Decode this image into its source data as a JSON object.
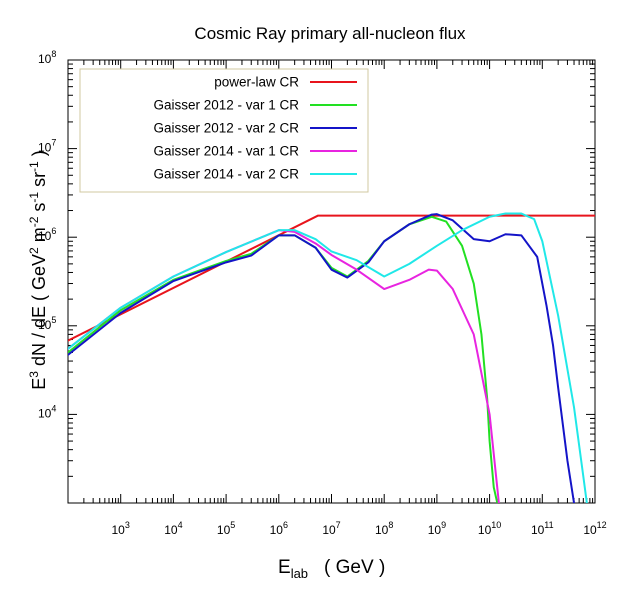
{
  "chart_data": {
    "type": "line",
    "title": "Cosmic Ray primary all-nucleon flux",
    "xlabel": {
      "main": "E",
      "sub": "lab",
      "unit": "( GeV )"
    },
    "ylabel": {
      "text1": "E",
      "sup1": "3",
      "text2": " dN / dE   ( GeV",
      "sup2": "2",
      "text3": " m",
      "sup3": "-2",
      "text4": " s",
      "sup4": "-1",
      "text5": " sr",
      "sup5": "-1",
      "text6": " )"
    },
    "x_scale": "log",
    "y_scale": "log",
    "xlim": [
      100,
      1000000000000
    ],
    "ylim": [
      1000,
      100000000
    ],
    "grid": false,
    "legend_position": "top-left",
    "x_ticks": [
      {
        "base": "10",
        "exp": "3",
        "value": 1000
      },
      {
        "base": "10",
        "exp": "4",
        "value": 10000
      },
      {
        "base": "10",
        "exp": "5",
        "value": 100000
      },
      {
        "base": "10",
        "exp": "6",
        "value": 1000000
      },
      {
        "base": "10",
        "exp": "7",
        "value": 10000000
      },
      {
        "base": "10",
        "exp": "8",
        "value": 100000000
      },
      {
        "base": "10",
        "exp": "9",
        "value": 1000000000
      },
      {
        "base": "10",
        "exp": "10",
        "value": 10000000000
      },
      {
        "base": "10",
        "exp": "11",
        "value": 100000000000
      },
      {
        "base": "10",
        "exp": "12",
        "value": 1000000000000
      }
    ],
    "y_ticks": [
      {
        "base": "10",
        "exp": "4",
        "value": 10000
      },
      {
        "base": "10",
        "exp": "5",
        "value": 100000
      },
      {
        "base": "10",
        "exp": "6",
        "value": 1000000
      },
      {
        "base": "10",
        "exp": "7",
        "value": 10000000
      },
      {
        "base": "10",
        "exp": "8",
        "value": 100000000
      }
    ],
    "series": [
      {
        "name": "power-law CR",
        "color": "#e8141c",
        "x": [
          100,
          5500000,
          1000000000000
        ],
        "y": [
          68000,
          1750000,
          1750000
        ]
      },
      {
        "name": "Gaisser 2012 - var 1 CR",
        "color": "#22e022",
        "x": [
          100,
          1000,
          10000,
          100000,
          300000,
          1000000,
          2000000,
          5000000,
          10000000,
          20000000,
          50000000,
          100000000,
          300000000,
          800000000,
          1500000000,
          3000000000,
          5000000000,
          7000000000,
          9000000000,
          10000000000,
          12000000000,
          14000000000
        ],
        "y": [
          50000,
          150000,
          330000,
          540000,
          650000,
          1050000,
          1050000,
          760000,
          450000,
          360000,
          540000,
          900000,
          1400000,
          1700000,
          1500000,
          800000,
          300000,
          80000,
          15000,
          5000,
          1500,
          1000
        ]
      },
      {
        "name": "Gaisser 2012 - var 2 CR",
        "color": "#1414c8",
        "x": [
          100,
          1000,
          10000,
          100000,
          300000,
          1000000,
          2000000,
          5000000,
          10000000,
          20000000,
          50000000,
          100000000,
          300000000,
          800000000,
          1000000000,
          2000000000,
          5000000000,
          10000000000,
          20000000000,
          40000000000,
          80000000000,
          120000000000,
          160000000000,
          200000000000,
          300000000000,
          400000000000
        ],
        "y": [
          47000,
          140000,
          320000,
          520000,
          620000,
          1050000,
          1050000,
          760000,
          430000,
          350000,
          520000,
          900000,
          1400000,
          1800000,
          1820000,
          1550000,
          950000,
          900000,
          1080000,
          1050000,
          600000,
          170000,
          60000,
          20000,
          3000,
          1000
        ]
      },
      {
        "name": "Gaisser 2014 - var 1 CR",
        "color": "#e824e0",
        "x": [
          100,
          1000,
          10000,
          100000,
          1000000,
          2000000,
          5000000,
          10000000,
          30000000,
          100000000,
          300000000,
          700000000,
          1000000000,
          2000000000,
          5000000000,
          10000000000,
          15000000000
        ],
        "y": [
          55000,
          160000,
          360000,
          680000,
          1200000,
          1150000,
          850000,
          630000,
          430000,
          260000,
          330000,
          430000,
          420000,
          260000,
          80000,
          10000,
          1000
        ]
      },
      {
        "name": "Gaisser 2014 - var 2 CR",
        "color": "#20e8e8",
        "x": [
          100,
          1000,
          10000,
          100000,
          1000000,
          2000000,
          5000000,
          10000000,
          30000000,
          100000000,
          300000000,
          1000000000,
          3000000000,
          10000000000,
          20000000000,
          40000000000,
          70000000000,
          100000000000,
          200000000000,
          400000000000,
          600000000000,
          700000000000
        ],
        "y": [
          55000,
          160000,
          360000,
          680000,
          1200000,
          1200000,
          950000,
          690000,
          550000,
          360000,
          500000,
          800000,
          1200000,
          1700000,
          1850000,
          1850000,
          1600000,
          900000,
          130000,
          12000,
          2000,
          1000
        ]
      }
    ]
  }
}
